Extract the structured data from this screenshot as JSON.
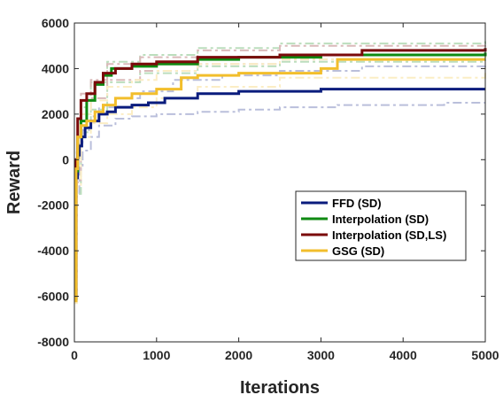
{
  "chart_data": {
    "type": "line",
    "title": "",
    "xlabel": "Iterations",
    "ylabel": "Reward",
    "xlim": [
      0,
      5000
    ],
    "ylim": [
      -8000,
      6000
    ],
    "xticks": [
      0,
      1000,
      2000,
      3000,
      4000,
      5000
    ],
    "xtick_labels": [
      "0",
      "1000",
      "2000",
      "3000",
      "4000",
      "5000"
    ],
    "yticks": [
      -8000,
      -6000,
      -4000,
      -2000,
      0,
      2000,
      4000,
      6000
    ],
    "ytick_labels": [
      "-8000",
      "-6000",
      "-4000",
      "-2000",
      "0",
      "2000",
      "4000",
      "6000"
    ],
    "grid": false,
    "legend_position": "lower-right",
    "series": [
      {
        "name": "FFD (SD)",
        "color": "#0a1c7d",
        "mean": [
          [
            0,
            -6100
          ],
          [
            20,
            -800
          ],
          [
            40,
            200
          ],
          [
            60,
            600
          ],
          [
            90,
            1000
          ],
          [
            130,
            1400
          ],
          [
            200,
            1700
          ],
          [
            300,
            2000
          ],
          [
            400,
            2100
          ],
          [
            500,
            2300
          ],
          [
            700,
            2400
          ],
          [
            900,
            2500
          ],
          [
            1100,
            2700
          ],
          [
            1500,
            2900
          ],
          [
            2000,
            3000
          ],
          [
            3000,
            3100
          ],
          [
            5000,
            3100
          ]
        ],
        "upper": [
          [
            0,
            -6000
          ],
          [
            30,
            0
          ],
          [
            60,
            700
          ],
          [
            100,
            1300
          ],
          [
            200,
            1900
          ],
          [
            300,
            2300
          ],
          [
            500,
            2700
          ],
          [
            800,
            3000
          ],
          [
            1200,
            3500
          ],
          [
            1800,
            3700
          ],
          [
            2500,
            3900
          ],
          [
            3500,
            4100
          ],
          [
            5000,
            4200
          ]
        ],
        "lower": [
          [
            0,
            -6200
          ],
          [
            30,
            -1500
          ],
          [
            60,
            -300
          ],
          [
            100,
            400
          ],
          [
            200,
            1000
          ],
          [
            300,
            1500
          ],
          [
            500,
            1800
          ],
          [
            700,
            1900
          ],
          [
            1000,
            2000
          ],
          [
            1500,
            2100
          ],
          [
            2000,
            2200
          ],
          [
            2500,
            2300
          ],
          [
            3200,
            2400
          ],
          [
            4500,
            2500
          ],
          [
            5000,
            2500
          ]
        ]
      },
      {
        "name": "Interpolation (SD)",
        "color": "#0f8a12",
        "mean": [
          [
            0,
            -6100
          ],
          [
            20,
            -500
          ],
          [
            40,
            1000
          ],
          [
            80,
            1700
          ],
          [
            150,
            2600
          ],
          [
            250,
            3300
          ],
          [
            350,
            3700
          ],
          [
            450,
            4000
          ],
          [
            700,
            4100
          ],
          [
            1000,
            4200
          ],
          [
            1500,
            4400
          ],
          [
            2000,
            4500
          ],
          [
            3000,
            4600
          ],
          [
            5000,
            4700
          ]
        ],
        "upper": [
          [
            0,
            -6000
          ],
          [
            30,
            0
          ],
          [
            80,
            2300
          ],
          [
            200,
            3400
          ],
          [
            400,
            4300
          ],
          [
            800,
            4600
          ],
          [
            1500,
            4900
          ],
          [
            2500,
            5100
          ],
          [
            5000,
            5200
          ]
        ],
        "lower": [
          [
            0,
            -6200
          ],
          [
            30,
            -1500
          ],
          [
            80,
            1200
          ],
          [
            200,
            2200
          ],
          [
            400,
            3400
          ],
          [
            800,
            3800
          ],
          [
            1500,
            4100
          ],
          [
            2500,
            4300
          ],
          [
            5000,
            4400
          ]
        ]
      },
      {
        "name": "Interpolation (SD,LS)",
        "color": "#7a0a0a",
        "mean": [
          [
            0,
            -6000
          ],
          [
            20,
            0
          ],
          [
            40,
            1800
          ],
          [
            80,
            2600
          ],
          [
            150,
            2900
          ],
          [
            250,
            3400
          ],
          [
            350,
            3800
          ],
          [
            500,
            4000
          ],
          [
            700,
            4200
          ],
          [
            1000,
            4300
          ],
          [
            1500,
            4500
          ],
          [
            2500,
            4600
          ],
          [
            3500,
            4800
          ],
          [
            5000,
            4900
          ]
        ],
        "upper": [
          [
            0,
            -5900
          ],
          [
            30,
            500
          ],
          [
            80,
            2900
          ],
          [
            200,
            3500
          ],
          [
            400,
            4200
          ],
          [
            800,
            4500
          ],
          [
            1500,
            4800
          ],
          [
            2500,
            5000
          ],
          [
            5000,
            5100
          ]
        ],
        "lower": [
          [
            0,
            -6100
          ],
          [
            30,
            -1000
          ],
          [
            80,
            2000
          ],
          [
            200,
            2700
          ],
          [
            400,
            3500
          ],
          [
            800,
            3900
          ],
          [
            1500,
            4200
          ],
          [
            2500,
            4400
          ],
          [
            5000,
            4600
          ]
        ]
      },
      {
        "name": "GSG (SD)",
        "color": "#f2be2c",
        "mean": [
          [
            0,
            -6200
          ],
          [
            20,
            -400
          ],
          [
            40,
            1000
          ],
          [
            80,
            1500
          ],
          [
            150,
            1700
          ],
          [
            250,
            2100
          ],
          [
            350,
            2400
          ],
          [
            500,
            2700
          ],
          [
            700,
            2900
          ],
          [
            1000,
            3100
          ],
          [
            1300,
            3600
          ],
          [
            1500,
            3700
          ],
          [
            2000,
            3800
          ],
          [
            3000,
            4000
          ],
          [
            3200,
            4400
          ],
          [
            5000,
            4400
          ]
        ],
        "upper": [
          [
            0,
            -6100
          ],
          [
            30,
            200
          ],
          [
            80,
            2000
          ],
          [
            200,
            2600
          ],
          [
            400,
            3200
          ],
          [
            700,
            3500
          ],
          [
            1000,
            3900
          ],
          [
            1500,
            4200
          ],
          [
            2500,
            4400
          ],
          [
            5000,
            4700
          ]
        ],
        "lower": [
          [
            0,
            -6300
          ],
          [
            30,
            -1200
          ],
          [
            80,
            1000
          ],
          [
            200,
            1600
          ],
          [
            400,
            2000
          ],
          [
            700,
            2300
          ],
          [
            1000,
            2700
          ],
          [
            1500,
            3200
          ],
          [
            2500,
            3600
          ],
          [
            5000,
            4000
          ]
        ]
      }
    ]
  }
}
